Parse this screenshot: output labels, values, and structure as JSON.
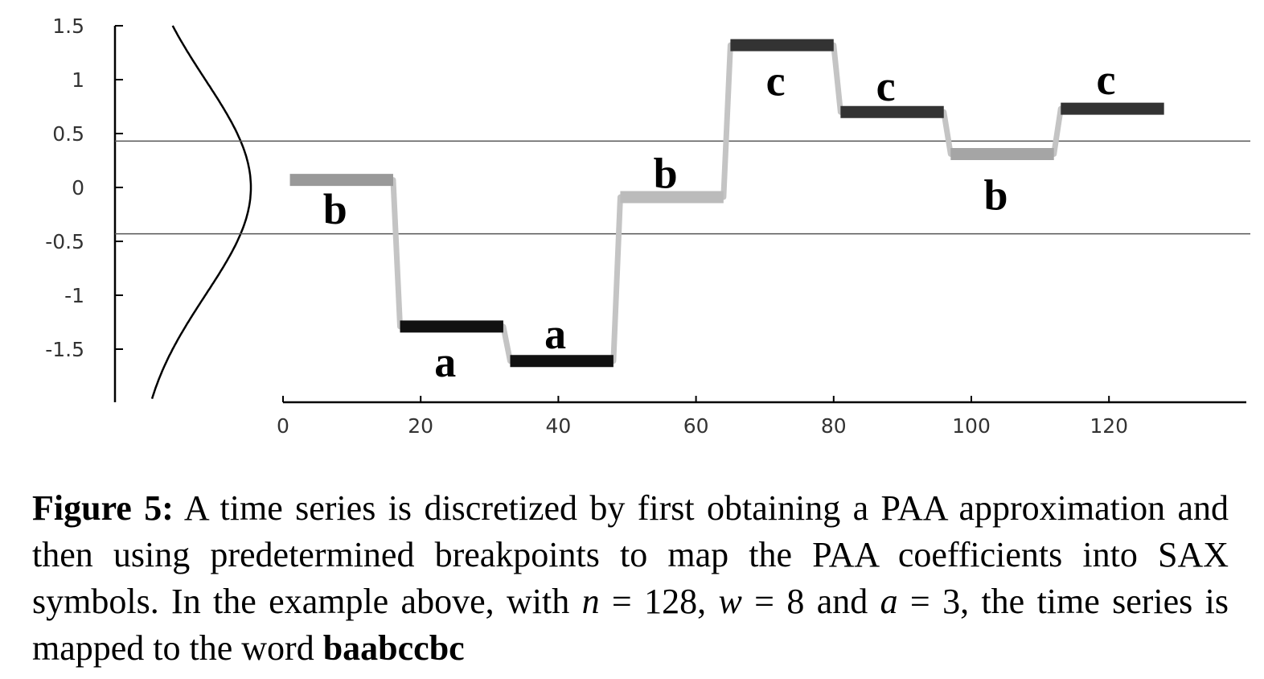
{
  "chart_data": {
    "type": "line",
    "title": "",
    "xlabel": "",
    "ylabel": "",
    "xlim": [
      0,
      140
    ],
    "ylim": [
      -2,
      1.5
    ],
    "x_ticks": [
      "0",
      "20",
      "40",
      "60",
      "80",
      "100",
      "120"
    ],
    "y_ticks": [
      "1.5",
      "1",
      "0.5",
      "0",
      "-0.5",
      "-1",
      "-1.5"
    ],
    "breakpoints": [
      0.43,
      -0.43
    ],
    "segments": [
      {
        "x0": 1,
        "x1": 16,
        "value": 0.07,
        "symbol": "b",
        "color": "#999999"
      },
      {
        "x0": 17,
        "x1": 32,
        "value": -1.29,
        "symbol": "a",
        "color": "#111111"
      },
      {
        "x0": 33,
        "x1": 48,
        "value": -1.61,
        "symbol": "a",
        "color": "#111111"
      },
      {
        "x0": 49,
        "x1": 64,
        "value": -0.09,
        "symbol": "b",
        "color": "#bbbbbb"
      },
      {
        "x0": 65,
        "x1": 80,
        "value": 1.32,
        "symbol": "c",
        "color": "#333333"
      },
      {
        "x0": 81,
        "x1": 96,
        "value": 0.7,
        "symbol": "c",
        "color": "#333333"
      },
      {
        "x0": 97,
        "x1": 112,
        "value": 0.31,
        "symbol": "b",
        "color": "#a5a5a5"
      },
      {
        "x0": 113,
        "x1": 128,
        "value": 0.73,
        "symbol": "c",
        "color": "#333333"
      }
    ],
    "symbol_offsets": [
      -0.27,
      -0.33,
      0.25,
      0.22,
      -0.33,
      0.24,
      -0.38,
      0.27
    ],
    "connector_color": "#c4c4c4",
    "gaussian_curve": {
      "stroke": "#000000"
    }
  },
  "caption": {
    "label": "Figure 5:",
    "t1": " A time series is discretized by first obtaining a PAA approximation and then using predetermined breakpoints to map the PAA coefficients into SAX symbols. In the example above, with ",
    "n": "n",
    "t2": " = 128, ",
    "w": "w",
    "t3": " = 8 and ",
    "a": "a",
    "t4": " = 3, the time series is mapped to the word ",
    "word": "baabccbc"
  }
}
